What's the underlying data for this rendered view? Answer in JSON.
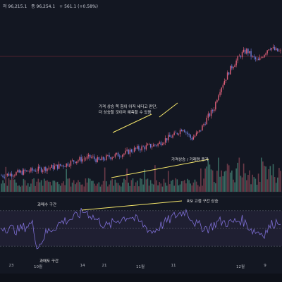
{
  "header": {
    "ohlc": [
      "저 96,215.1",
      "종 96,254.1",
      "+ 561.1 (+0.58%)"
    ]
  },
  "annotations": {
    "price_note_line1": "가격 상승 쪽 힘이 아직 세다고 판단,",
    "price_note_line2": "더 상승할 것이라 예측할 수 있음",
    "volume_note": "가격상승 / 거래량 증가",
    "overbought_label": "과매수 구간",
    "rsi_note": "RSI 고점 구간 상승",
    "oversold_label": "과매도 구간"
  },
  "colors": {
    "background": "#131722",
    "up_candle": "#e0607a",
    "down_candle": "#6b7bd8",
    "trendline": "#f5e66a",
    "rsi_line": "#7e6fd6",
    "rsi_band": "#2a2640",
    "price_marker_line": "#8b2a3c"
  },
  "chart_data": [
    {
      "type": "candlestick",
      "title": "",
      "x_tick_labels": [
        "23",
        "10월",
        "14",
        "21",
        "11월",
        "11",
        "12월",
        "9"
      ],
      "trend": [
        [
          0,
          62
        ],
        [
          4,
          62.5
        ],
        [
          8,
          63
        ],
        [
          12,
          63.5
        ],
        [
          16,
          64
        ],
        [
          20,
          64.5
        ],
        [
          23,
          65
        ],
        [
          26,
          66
        ],
        [
          29,
          66.5
        ],
        [
          32,
          67
        ],
        [
          35,
          66
        ],
        [
          38,
          67
        ],
        [
          41,
          67.5
        ],
        [
          44,
          68
        ],
        [
          47,
          69
        ],
        [
          50,
          69.5
        ],
        [
          53,
          70
        ],
        [
          56,
          70.5
        ],
        [
          59,
          72
        ],
        [
          62,
          73
        ],
        [
          65,
          75
        ],
        [
          68,
          72
        ],
        [
          71,
          74
        ],
        [
          74,
          78
        ],
        [
          76,
          80
        ],
        [
          78,
          85
        ],
        [
          80,
          88
        ],
        [
          82,
          91
        ],
        [
          84,
          93
        ],
        [
          86,
          95
        ],
        [
          88,
          96
        ],
        [
          90,
          94
        ],
        [
          92,
          93
        ],
        [
          94,
          95
        ],
        [
          96,
          97
        ],
        [
          98,
          96
        ],
        [
          100,
          95.5
        ]
      ],
      "ylim": [
        58,
        102
      ]
    },
    {
      "type": "bar",
      "title": "",
      "series_name": "거래량",
      "note": "가격상승 / 거래량 증가"
    },
    {
      "type": "line",
      "title": "",
      "series_name": "RSI",
      "overbought": 70,
      "oversold": 30,
      "ylim": [
        15,
        85
      ],
      "trend": [
        [
          0,
          52
        ],
        [
          6,
          48
        ],
        [
          11,
          56
        ],
        [
          13,
          28
        ],
        [
          16,
          45
        ],
        [
          22,
          58
        ],
        [
          26,
          62
        ],
        [
          30,
          70
        ],
        [
          34,
          60
        ],
        [
          38,
          52
        ],
        [
          42,
          60
        ],
        [
          46,
          64
        ],
        [
          50,
          56
        ],
        [
          54,
          46
        ],
        [
          58,
          55
        ],
        [
          62,
          64
        ],
        [
          66,
          70
        ],
        [
          70,
          54
        ],
        [
          74,
          50
        ],
        [
          78,
          58
        ],
        [
          82,
          56
        ],
        [
          86,
          60
        ],
        [
          90,
          48
        ],
        [
          94,
          44
        ],
        [
          97,
          55
        ],
        [
          100,
          60
        ]
      ]
    }
  ]
}
